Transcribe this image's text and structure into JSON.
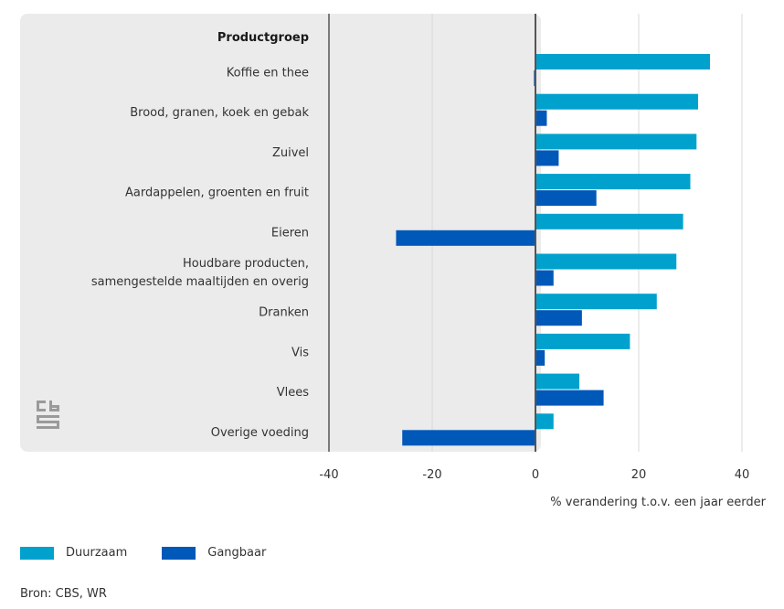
{
  "chart_data": {
    "type": "bar",
    "orientation": "horizontal",
    "category_header": "Productgroep",
    "categories": [
      [
        "Koffie en thee"
      ],
      [
        "Brood, granen, koek en gebak"
      ],
      [
        "Zuivel"
      ],
      [
        "Aardappelen, groenten en fruit"
      ],
      [
        "Eieren"
      ],
      [
        "Houdbare producten,",
        "samengestelde maaltijden en overig"
      ],
      [
        "Dranken"
      ],
      [
        "Vis"
      ],
      [
        "Vlees"
      ],
      [
        "Overige voeding"
      ]
    ],
    "series": [
      {
        "name": "Duurzaam",
        "color": "#00a1cd",
        "values": [
          33.8,
          31.5,
          31.2,
          30.0,
          28.6,
          27.3,
          23.5,
          18.3,
          8.5,
          3.5
        ]
      },
      {
        "name": "Gangbaar",
        "color": "#0058b8",
        "values": [
          -0.3,
          2.2,
          4.5,
          11.8,
          -27.0,
          3.5,
          9.0,
          1.8,
          13.2,
          -25.8
        ]
      }
    ],
    "xlabel": "% verandering t.o.v. een jaar eerder",
    "xlim": [
      -40,
      40
    ],
    "xticks": [
      -40,
      -20,
      0,
      20,
      40
    ],
    "grid": true,
    "legend_position": "bottom-left"
  },
  "source_text": "Bron: CBS, WR",
  "logo": {
    "icon": "cbs-logo-icon",
    "text": "cbs"
  }
}
